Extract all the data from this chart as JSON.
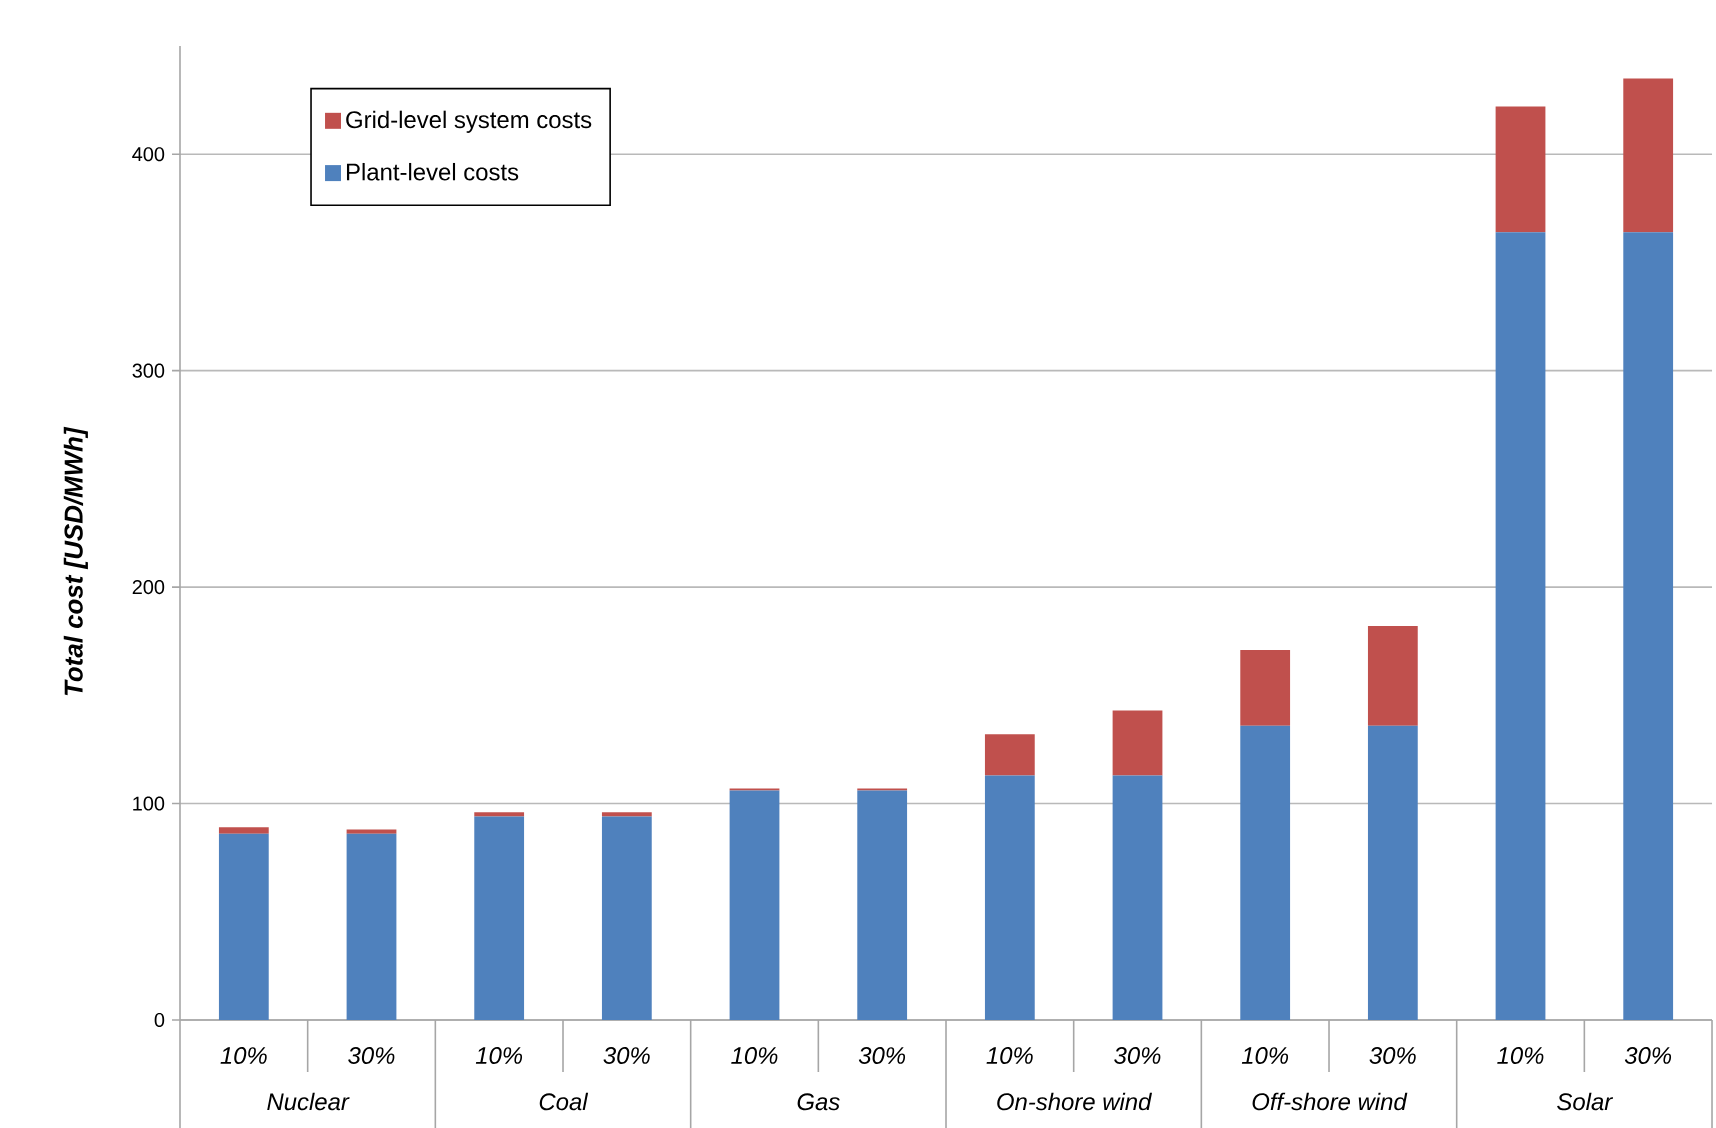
{
  "chart_data": {
    "type": "bar",
    "stacked": true,
    "ylabel": "Total cost [USD/MWh]",
    "categories": [
      "10%",
      "30%",
      "10%",
      "30%",
      "10%",
      "30%",
      "10%",
      "30%",
      "10%",
      "30%",
      "10%",
      "30%"
    ],
    "series": [
      {
        "name": "Plant-level costs",
        "color": "#4f81bd",
        "values": [
          86,
          86,
          94,
          94,
          106,
          106,
          113,
          113,
          136,
          136,
          364,
          364
        ]
      },
      {
        "name": "Grid-level system costs",
        "color": "#c0504d",
        "values": [
          3,
          2,
          2,
          2,
          1,
          1,
          19,
          30,
          35,
          46,
          58,
          71
        ]
      }
    ],
    "ylim": [
      0,
      450
    ],
    "yticks": [
      0,
      100,
      200,
      300,
      400
    ],
    "grid": "y",
    "legend": "top left",
    "annotations": [
      "Nuclear",
      "Coal",
      "Gas",
      "On-shore wind",
      "Off-shore wind",
      "Solar"
    ]
  }
}
